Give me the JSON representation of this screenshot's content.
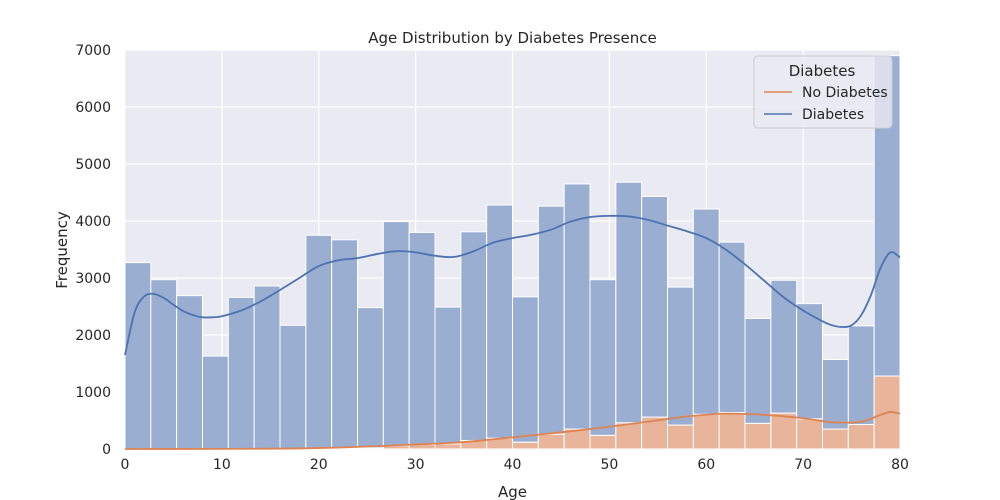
{
  "chart_data": {
    "type": "bar",
    "title": "Age Distribution by Diabetes Presence",
    "xlabel": "Age",
    "ylabel": "Frequency",
    "xlim": [
      0,
      80
    ],
    "ylim": [
      0,
      7000
    ],
    "x_ticks": [
      0,
      10,
      20,
      30,
      40,
      50,
      60,
      70,
      80
    ],
    "y_ticks": [
      0,
      1000,
      2000,
      3000,
      4000,
      5000,
      6000,
      7000
    ],
    "grid": true,
    "stacked": true,
    "bin_edges": [
      0,
      2.667,
      5.333,
      8,
      10.667,
      13.333,
      16,
      18.667,
      21.333,
      24,
      26.667,
      29.333,
      32,
      34.667,
      37.333,
      40,
      42.667,
      45.333,
      48,
      50.667,
      53.333,
      56,
      58.667,
      61.333,
      64,
      66.667,
      69.333,
      72,
      74.667,
      77.333,
      80
    ],
    "legend": {
      "title": "Diabetes",
      "position": "top-right",
      "entries": [
        "No Diabetes",
        "Diabetes"
      ]
    },
    "series": [
      {
        "name": "Diabetes",
        "color": "#4c72b0",
        "bar_color": "#9aaed2",
        "values": [
          3270,
          2970,
          2690,
          1630,
          2660,
          2860,
          2170,
          3740,
          3650,
          2460,
          3930,
          3720,
          2400,
          3660,
          4090,
          2550,
          4000,
          4300,
          2730,
          4220,
          3870,
          2420,
          3600,
          2990,
          1840,
          2330,
          2020,
          1220,
          1730,
          5620
        ],
        "kde_x": [
          0,
          1,
          2,
          3,
          4,
          5,
          6,
          7,
          8,
          9,
          10,
          12,
          14,
          16,
          18,
          20,
          22,
          24,
          26,
          28,
          30,
          32,
          34,
          36,
          38,
          40,
          42,
          44,
          46,
          48,
          50,
          52,
          54,
          56,
          58,
          60,
          62,
          64,
          66,
          68,
          70,
          72,
          73,
          74,
          75,
          76,
          77,
          78,
          79,
          80
        ],
        "kde_y": [
          1650,
          2400,
          2680,
          2720,
          2650,
          2530,
          2420,
          2350,
          2310,
          2310,
          2330,
          2430,
          2590,
          2790,
          3000,
          3210,
          3310,
          3350,
          3420,
          3470,
          3450,
          3390,
          3370,
          3470,
          3620,
          3700,
          3760,
          3850,
          3990,
          4070,
          4090,
          4080,
          4020,
          3920,
          3820,
          3700,
          3500,
          3240,
          2950,
          2660,
          2430,
          2240,
          2170,
          2140,
          2170,
          2350,
          2700,
          3180,
          3450,
          3360
        ]
      },
      {
        "name": "No Diabetes",
        "color": "#dd8452",
        "bar_color": "#e8b49a",
        "values": [
          0,
          0,
          0,
          0,
          0,
          0,
          0,
          10,
          20,
          20,
          60,
          80,
          90,
          150,
          190,
          120,
          260,
          350,
          240,
          460,
          560,
          420,
          610,
          640,
          450,
          630,
          530,
          350,
          430,
          1280
        ],
        "kde_x": [
          0,
          10,
          14,
          18,
          22,
          26,
          30,
          34,
          38,
          42,
          46,
          50,
          54,
          58,
          62,
          66,
          70,
          73,
          76,
          78,
          79,
          80
        ],
        "kde_y": [
          0,
          2,
          5,
          10,
          25,
          50,
          80,
          110,
          170,
          240,
          310,
          390,
          480,
          570,
          620,
          600,
          540,
          470,
          480,
          600,
          650,
          620
        ]
      }
    ]
  }
}
